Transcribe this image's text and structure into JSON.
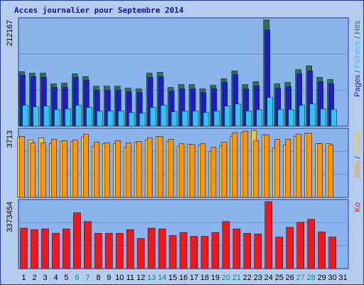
{
  "chart_data": [
    {
      "type": "bar",
      "title": "Acces journalier pour Septembre 2014",
      "legend_separator": " / ",
      "ylim": [
        0,
        212167
      ],
      "yticks": [
        212167
      ],
      "series": [
        {
          "name": "Pages",
          "color": "#1c1ccc",
          "values": [
            101800,
            98900,
            97500,
            77400,
            77400,
            97500,
            91800,
            71700,
            71700,
            71700,
            68800,
            67400,
            97500,
            98900,
            70200,
            74500,
            74500,
            67400,
            74500,
            87400,
            103200,
            74500,
            80300,
            192100,
            76000,
            78800,
            104700,
            110400,
            88900,
            84600,
            null
          ]
        },
        {
          "name": "Fichiers",
          "color": "#33c4f2",
          "values": [
            41600,
            38700,
            40100,
            33000,
            34400,
            41600,
            37300,
            30100,
            30100,
            30100,
            27200,
            25800,
            37300,
            41600,
            28700,
            30100,
            30100,
            27200,
            30100,
            40100,
            44400,
            30100,
            33000,
            57300,
            33000,
            33000,
            41600,
            44400,
            34400,
            33000,
            null
          ]
        },
        {
          "name": "Hits",
          "color": "#2a7250",
          "values": [
            109000,
            106000,
            106000,
            84600,
            86000,
            104600,
            99000,
            80000,
            80000,
            80000,
            76000,
            74500,
            106000,
            107500,
            77400,
            83100,
            83100,
            74500,
            81700,
            94600,
            110400,
            83100,
            88900,
            212167,
            84600,
            87400,
            113000,
            120400,
            97500,
            93200,
            null
          ]
        }
      ]
    },
    {
      "type": "bar",
      "ylim": [
        0,
        3713
      ],
      "yticks": [
        3713
      ],
      "series": [
        {
          "name": "Sites",
          "color": "#ff9410",
          "values": [
            3386,
            3019,
            3019,
            3223,
            3142,
            3182,
            3509,
            3060,
            3019,
            3142,
            3019,
            3101,
            3305,
            3386,
            3223,
            2978,
            2938,
            2978,
            2774,
            3060,
            3590,
            3672,
            3142,
            3468,
            3223,
            3223,
            3509,
            3550,
            2978,
            2897,
            null
          ]
        },
        {
          "name": "Visites",
          "color": "#f8c828",
          "values": [
            3346,
            3182,
            3305,
            2978,
            3101,
            3101,
            3346,
            2815,
            2978,
            2978,
            2774,
            3060,
            3182,
            3386,
            3101,
            2815,
            2938,
            2897,
            2530,
            2856,
            3386,
            3590,
            3713,
            3468,
            2734,
            2897,
            3386,
            3550,
            2978,
            2978,
            null
          ]
        }
      ]
    },
    {
      "type": "bar",
      "ylim": [
        0,
        3373454
      ],
      "yticks": [
        3373454
      ],
      "series": [
        {
          "name": "Ko",
          "color": "#f01818",
          "values": [
            2038900,
            1964800,
            2001800,
            1779400,
            2001800,
            2817400,
            2372500,
            1779400,
            1779400,
            1779400,
            1964800,
            1519900,
            2038900,
            2001800,
            1668200,
            1816500,
            1631100,
            1631100,
            1816500,
            2372500,
            2001800,
            1779400,
            1742300,
            3373454,
            1594100,
            2076000,
            2335500,
            2483800,
            1853600,
            1594100,
            null
          ]
        }
      ],
      "categories": [
        "1",
        "2",
        "3",
        "4",
        "5",
        "6",
        "7",
        "8",
        "9",
        "10",
        "11",
        "12",
        "13",
        "14",
        "15",
        "16",
        "17",
        "18",
        "19",
        "20",
        "21",
        "22",
        "23",
        "24",
        "25",
        "26",
        "27",
        "28",
        "29",
        "30",
        "31"
      ],
      "weekends": [
        5,
        6,
        12,
        13,
        19,
        20,
        26,
        27
      ],
      "weekend_color": "#108878"
    }
  ]
}
